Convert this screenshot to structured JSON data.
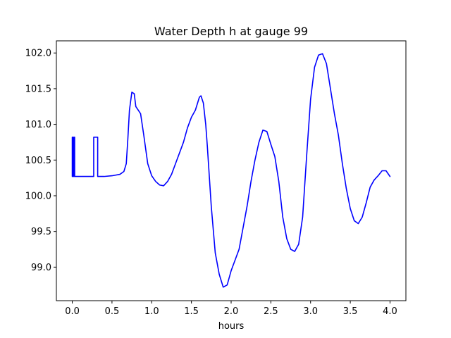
{
  "chart_data": {
    "type": "line",
    "title": "Water Depth h at gauge 99",
    "xlabel": "hours",
    "ylabel": "",
    "xlim": [
      -0.2,
      4.2
    ],
    "ylim": [
      98.53,
      102.17
    ],
    "xticks": [
      0.0,
      0.5,
      1.0,
      1.5,
      2.0,
      2.5,
      3.0,
      3.5,
      4.0
    ],
    "xtick_labels": [
      "0.0",
      "0.5",
      "1.0",
      "1.5",
      "2.0",
      "2.5",
      "3.0",
      "3.5",
      "4.0"
    ],
    "yticks": [
      99.0,
      99.5,
      100.0,
      100.5,
      101.0,
      101.5,
      102.0
    ],
    "ytick_labels": [
      "99.0",
      "99.5",
      "100.0",
      "100.5",
      "101.0",
      "101.5",
      "102.0"
    ],
    "grid": false,
    "series": [
      {
        "color": "#0000ff",
        "x": [
          0.0,
          0.0,
          0.01,
          0.01,
          0.02,
          0.02,
          0.03,
          0.03,
          0.04,
          0.1,
          0.2,
          0.27,
          0.27,
          0.3,
          0.3,
          0.32,
          0.32,
          0.4,
          0.5,
          0.6,
          0.65,
          0.68,
          0.7,
          0.72,
          0.75,
          0.78,
          0.8,
          0.83,
          0.86,
          0.9,
          0.95,
          1.0,
          1.05,
          1.1,
          1.15,
          1.2,
          1.25,
          1.3,
          1.35,
          1.4,
          1.45,
          1.5,
          1.55,
          1.6,
          1.62,
          1.65,
          1.68,
          1.7,
          1.75,
          1.8,
          1.85,
          1.9,
          1.95,
          2.0,
          2.05,
          2.1,
          2.15,
          2.2,
          2.25,
          2.3,
          2.35,
          2.4,
          2.45,
          2.5,
          2.55,
          2.6,
          2.65,
          2.7,
          2.75,
          2.8,
          2.85,
          2.9,
          2.95,
          3.0,
          3.05,
          3.1,
          3.15,
          3.2,
          3.25,
          3.3,
          3.35,
          3.4,
          3.45,
          3.5,
          3.55,
          3.6,
          3.65,
          3.7,
          3.75,
          3.8,
          3.85,
          3.9,
          3.95,
          4.0
        ],
        "y": [
          100.27,
          100.82,
          100.82,
          100.27,
          100.27,
          100.82,
          100.82,
          100.27,
          100.27,
          100.27,
          100.27,
          100.27,
          100.82,
          100.82,
          100.82,
          100.82,
          100.27,
          100.27,
          100.28,
          100.3,
          100.34,
          100.45,
          100.8,
          101.2,
          101.45,
          101.43,
          101.25,
          101.2,
          101.15,
          100.85,
          100.45,
          100.28,
          100.2,
          100.15,
          100.14,
          100.2,
          100.3,
          100.45,
          100.6,
          100.75,
          100.95,
          101.1,
          101.2,
          101.38,
          101.4,
          101.3,
          101.0,
          100.7,
          99.85,
          99.2,
          98.9,
          98.72,
          98.75,
          98.95,
          99.1,
          99.25,
          99.55,
          99.85,
          100.2,
          100.5,
          100.75,
          100.92,
          100.9,
          100.72,
          100.55,
          100.2,
          99.7,
          99.4,
          99.25,
          99.22,
          99.32,
          99.7,
          100.55,
          101.35,
          101.8,
          101.97,
          101.99,
          101.85,
          101.5,
          101.15,
          100.85,
          100.45,
          100.1,
          99.82,
          99.65,
          99.61,
          99.7,
          99.9,
          100.12,
          100.22,
          100.28,
          100.35,
          100.35,
          100.27
        ]
      }
    ]
  }
}
